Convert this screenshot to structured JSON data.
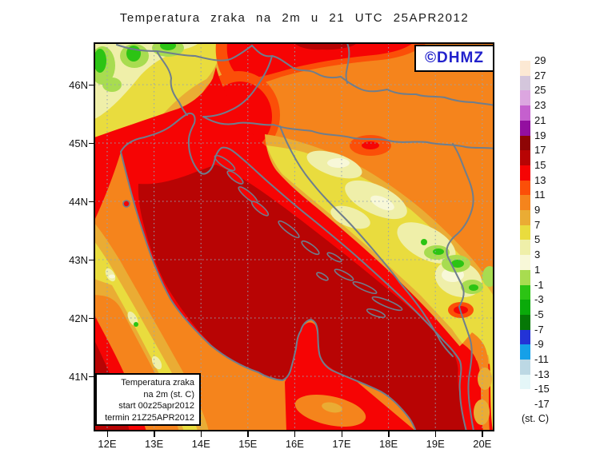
{
  "title": "Temperatura zraka na 2m u 21 UTC 25APR2012",
  "watermark": "©DHMZ",
  "info_box": {
    "lines": [
      "Temperatura zraka",
      "na 2m (st. C)",
      "start 00z25apr2012",
      "termin 21Z25APR2012"
    ]
  },
  "axes": {
    "y_labels": [
      "46N",
      "45N",
      "44N",
      "43N",
      "42N",
      "41N"
    ],
    "x_labels": [
      "12E",
      "13E",
      "14E",
      "15E",
      "16E",
      "17E",
      "18E",
      "19E",
      "20E"
    ]
  },
  "colorbar": {
    "unit": "(st. C)",
    "boundary_labels": [
      "29",
      "27",
      "25",
      "23",
      "21",
      "19",
      "17",
      "15",
      "13",
      "11",
      "9",
      "7",
      "5",
      "3",
      "1",
      "-1",
      "-3",
      "-5",
      "-7",
      "-9",
      "-11",
      "-13",
      "-15",
      "-17"
    ],
    "cell_colors": [
      "#FCE9D4",
      "#D4C6DC",
      "#DCA6E0",
      "#C560CE",
      "#930FA0",
      "#8E0505",
      "#B80404",
      "#F60404",
      "#FB4F08",
      "#F5841C",
      "#EAAC34",
      "#E9DC3E",
      "#EFEFA9",
      "#F8F8D8",
      "#A8DC50",
      "#2CC414",
      "#0AAA0A",
      "#067806",
      "#2333D6",
      "#15A0E8",
      "#BCD8E4",
      "#E4F6F8",
      "#FFFFFF"
    ]
  },
  "map": {
    "palette": {
      "darkred": "#B80404",
      "red": "#F60404",
      "orangered": "#FB4F08",
      "orange": "#F5841C",
      "amber": "#EAAC34",
      "yellow": "#E9DC3E",
      "paleyellow": "#EFEFA9",
      "palecream": "#F8F8D8",
      "lightgreen": "#A8DC50",
      "green": "#2CC414",
      "coast": "#6E7E8E",
      "grid": "#94A4B4",
      "frame": "#000000"
    }
  },
  "chart_data": {
    "type": "heatmap",
    "title": "Temperatura zraka na 2m u 21 UTC 25APR2012",
    "x_ticks": [
      "12E",
      "13E",
      "14E",
      "15E",
      "16E",
      "17E",
      "18E",
      "19E",
      "20E"
    ],
    "y_ticks": [
      "46N",
      "45N",
      "44N",
      "43N",
      "42N",
      "41N"
    ],
    "colorbar_values": [
      29,
      27,
      25,
      23,
      21,
      19,
      17,
      15,
      13,
      11,
      9,
      7,
      5,
      3,
      1,
      -1,
      -3,
      -5,
      -7,
      -9,
      -11,
      -13,
      -15,
      -17
    ],
    "colorbar_unit": "st. C",
    "field_summary": [
      {
        "area": "Adriatic Sea (dark red)",
        "temp_c": "15 to 17"
      },
      {
        "area": "NE Adriatic, Po valley, coastal belt (red)",
        "temp_c": "13 to 15"
      },
      {
        "area": "Pannonian lowlands (orange)",
        "temp_c": "9 to 11"
      },
      {
        "area": "Dinarides / Bosnia highlands, Apennines (yellow)",
        "temp_c": "5 to 7"
      },
      {
        "area": "highest mountain spots (pale yellow)",
        "temp_c": "1 to 5"
      },
      {
        "area": "Alpine NW corner (green)",
        "temp_c": "-3 to 1"
      }
    ]
  }
}
